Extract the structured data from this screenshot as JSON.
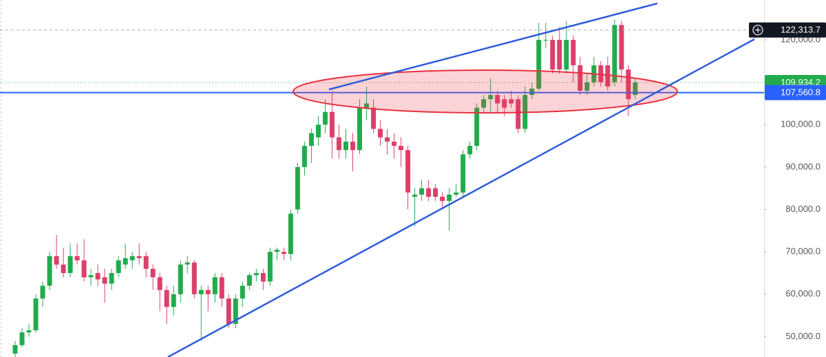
{
  "chart_data": {
    "type": "candlestick",
    "categories": [
      null,
      null,
      null,
      null,
      null,
      null,
      null,
      null,
      null,
      null,
      null,
      null,
      null,
      null,
      null,
      null,
      null,
      null,
      null,
      null,
      null,
      null,
      null,
      null,
      null,
      null,
      null,
      null,
      null,
      null,
      null,
      null,
      null,
      null,
      null,
      null,
      null,
      null,
      null,
      null,
      null,
      null,
      null,
      null,
      null,
      null,
      null,
      null,
      null,
      null,
      null,
      null,
      null,
      null,
      null,
      null,
      null,
      null,
      null,
      null,
      null,
      null,
      null,
      null,
      null,
      null,
      null,
      null,
      null,
      null,
      null,
      null,
      null,
      null,
      null,
      null,
      null,
      null,
      null,
      null,
      null,
      null,
      null,
      null,
      null,
      null,
      null,
      null,
      null,
      null,
      null
    ],
    "open": [
      46000,
      48000,
      51000,
      51500,
      59000,
      62000,
      69000,
      67000,
      65000,
      69000,
      68000,
      64000,
      65000,
      64000,
      62500,
      65000,
      67000,
      68000,
      69000,
      69000,
      66000,
      64000,
      61000,
      57000,
      60000,
      67000,
      67500,
      60000,
      61000,
      60000,
      64000,
      59000,
      53000,
      59000,
      62000,
      64500,
      65000,
      63000,
      70000,
      70000,
      69500,
      80000,
      90000,
      95000,
      97000,
      100000,
      103000,
      97000,
      94000,
      96000,
      94000,
      104000,
      104000,
      99000,
      97000,
      96000,
      95000,
      94000,
      83000,
      83500,
      85000,
      85000,
      83000,
      82000,
      83500,
      84000,
      93000,
      95000,
      104000,
      106000,
      107000,
      106000,
      106000,
      106000,
      99000,
      107000,
      108500,
      120000,
      120000,
      120000,
      113000,
      120000,
      114000,
      108000,
      110000,
      114000,
      114000,
      110000,
      123500,
      113000,
      107000
    ],
    "high": [
      49000,
      52000,
      53000,
      60000,
      63000,
      70000,
      74000,
      71000,
      72000,
      72000,
      73000,
      66000,
      67000,
      66000,
      66000,
      69000,
      72000,
      70000,
      72000,
      70000,
      67000,
      65000,
      62000,
      62000,
      68000,
      69000,
      68000,
      62000,
      62000,
      65000,
      65000,
      60000,
      60000,
      63000,
      65000,
      66000,
      66000,
      71000,
      71000,
      71000,
      80000,
      91000,
      96000,
      99000,
      102000,
      106000,
      108000,
      100000,
      99000,
      98000,
      106000,
      109000,
      106000,
      101000,
      99000,
      98000,
      97000,
      95000,
      85000,
      87000,
      87000,
      86000,
      84000,
      85000,
      86000,
      94000,
      96000,
      105000,
      107000,
      111000,
      108000,
      107000,
      108000,
      107000,
      109000,
      110000,
      124000,
      124000,
      121000,
      123000,
      124500,
      121000,
      116000,
      112000,
      116000,
      115000,
      116000,
      124800,
      124500,
      114000,
      111000
    ],
    "low": [
      45000,
      47500,
      50000,
      51000,
      57000,
      61000,
      66000,
      64000,
      64000,
      67000,
      63000,
      62000,
      62000,
      58000,
      61000,
      64000,
      66000,
      66000,
      67000,
      64000,
      61000,
      56000,
      53000,
      55000,
      58000,
      65000,
      59000,
      49000,
      56000,
      58000,
      57000,
      52000,
      52000,
      57000,
      61000,
      63000,
      61000,
      62000,
      68000,
      68000,
      68000,
      79000,
      88000,
      91000,
      95000,
      98000,
      92000,
      92000,
      92000,
      89000,
      93000,
      101000,
      98000,
      95000,
      93000,
      92000,
      90000,
      80000,
      76000,
      82000,
      82000,
      82000,
      80000,
      75000,
      83000,
      83000,
      92000,
      94000,
      103000,
      103000,
      103000,
      102000,
      104000,
      98000,
      98000,
      106000,
      108000,
      118000,
      112000,
      112000,
      112000,
      110000,
      107000,
      107000,
      109000,
      109000,
      108000,
      109000,
      110000,
      102000,
      106000
    ],
    "close": [
      48000,
      51000,
      51500,
      59000,
      62000,
      69000,
      67000,
      65000,
      69000,
      68000,
      64000,
      64500,
      63500,
      62500,
      65000,
      68000,
      68500,
      69000,
      68500,
      66000,
      64000,
      61000,
      57000,
      60000,
      67000,
      67500,
      60000,
      61000,
      60000,
      64000,
      59000,
      53000,
      59000,
      62000,
      64500,
      65000,
      63000,
      70000,
      70500,
      69500,
      79000,
      90000,
      95000,
      98000,
      100000,
      103000,
      97000,
      94000,
      96000,
      94000,
      104000,
      105000,
      99000,
      97000,
      96000,
      95000,
      94000,
      84000,
      83500,
      85000,
      83000,
      83000,
      82000,
      83500,
      84000,
      93000,
      95000,
      104000,
      106000,
      107000,
      105000,
      104000,
      105000,
      99000,
      107000,
      108500,
      120000,
      120000,
      113000,
      113000,
      120000,
      114000,
      108000,
      110000,
      114000,
      110000,
      109000,
      123500,
      113000,
      106000,
      110000
    ],
    "up_color": "#22ab4c",
    "down_color": "#dc3f6a",
    "ylim": [
      45200,
      129400
    ],
    "yticks": [
      {
        "value": 50000,
        "label": "50,000.0"
      },
      {
        "value": 60000,
        "label": "60,000.0"
      },
      {
        "value": 70000,
        "label": "70,000.0"
      },
      {
        "value": 80000,
        "label": "80,000.0"
      },
      {
        "value": 90000,
        "label": "90,000.0"
      },
      {
        "value": 100000,
        "label": "100,000.0"
      },
      {
        "value": 120000,
        "label": "120,000.0"
      }
    ],
    "price_lines": [
      {
        "value": 122313.7,
        "label": "122,313.7",
        "color": "#131722"
      },
      {
        "value": 109934.2,
        "label": "109,934.2",
        "color": "#22ab4c"
      },
      {
        "value": 107560.8,
        "label": "107,560.8",
        "color": "#2962ff"
      }
    ]
  }
}
